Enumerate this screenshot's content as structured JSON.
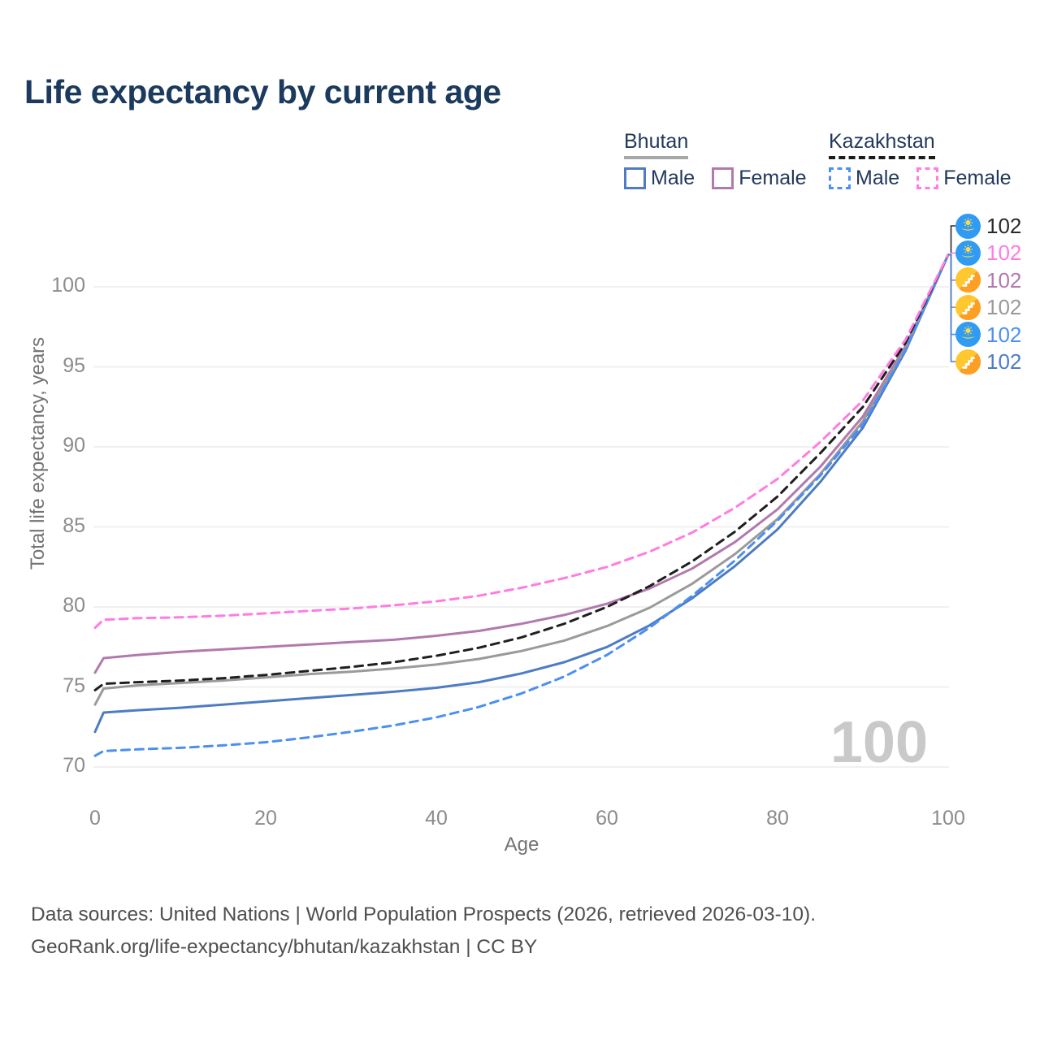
{
  "title": "Life expectancy by current age",
  "legend": {
    "groups": [
      {
        "label": "Bhutan",
        "underline_color": "#a8a8a8",
        "underline_style": "solid",
        "items": [
          {
            "label": "Male",
            "color": "#4d7cc3",
            "dashed": false
          },
          {
            "label": "Female",
            "color": "#b279ae",
            "dashed": false
          }
        ]
      },
      {
        "label": "Kazakhstan",
        "underline_color": "#1b1b1b",
        "underline_style": "dashed",
        "items": [
          {
            "label": "Male",
            "color": "#4b8ff2",
            "dashed": true
          },
          {
            "label": "Female",
            "color": "#ff7ce2",
            "dashed": true
          }
        ]
      }
    ]
  },
  "chart_data": {
    "type": "line",
    "title": "Life expectancy by current age",
    "xlabel": "Age",
    "ylabel": "Total life expectancy, years",
    "xlim": [
      0,
      100
    ],
    "ylim": [
      69,
      102.5
    ],
    "xticks": [
      0,
      20,
      40,
      60,
      80,
      100
    ],
    "yticks": [
      70,
      75,
      80,
      85,
      90,
      95,
      100
    ],
    "grid": "horizontal",
    "legend_position": "top-right",
    "watermark": "100",
    "x": [
      0,
      1,
      5,
      10,
      15,
      20,
      25,
      30,
      35,
      40,
      45,
      50,
      55,
      60,
      65,
      70,
      75,
      80,
      85,
      90,
      95,
      100
    ],
    "series": [
      {
        "name": "Bhutan Male",
        "country": "Bhutan",
        "sex": "male",
        "color": "#4d7cc3",
        "dashed": false,
        "values": [
          72.2,
          73.4,
          73.55,
          73.7,
          73.9,
          74.1,
          74.3,
          74.5,
          74.7,
          74.95,
          75.3,
          75.85,
          76.55,
          77.5,
          78.85,
          80.55,
          82.55,
          84.85,
          87.8,
          91.2,
          96.0,
          102
        ]
      },
      {
        "name": "Bhutan Female",
        "country": "Bhutan",
        "sex": "female",
        "color": "#b279ae",
        "dashed": false,
        "values": [
          75.9,
          76.8,
          77.0,
          77.2,
          77.35,
          77.5,
          77.65,
          77.8,
          77.95,
          78.2,
          78.5,
          78.95,
          79.5,
          80.2,
          81.15,
          82.4,
          84.05,
          86.1,
          88.75,
          91.9,
          96.3,
          102
        ]
      },
      {
        "name": "Bhutan (both sexes)",
        "country": "Bhutan",
        "sex": "both",
        "color": "#9a9a9a",
        "dashed": false,
        "values": [
          73.9,
          74.9,
          75.1,
          75.25,
          75.4,
          75.6,
          75.8,
          75.95,
          76.15,
          76.4,
          76.75,
          77.25,
          77.9,
          78.8,
          79.95,
          81.45,
          83.3,
          85.5,
          88.3,
          91.6,
          96.15,
          102
        ]
      },
      {
        "name": "Kazakhstan Male",
        "country": "Kazakhstan",
        "sex": "male",
        "color": "#4b8ff2",
        "dashed": true,
        "values": [
          70.7,
          71.0,
          71.1,
          71.2,
          71.35,
          71.55,
          71.85,
          72.2,
          72.6,
          73.1,
          73.75,
          74.6,
          75.65,
          77.0,
          78.7,
          80.7,
          82.9,
          85.4,
          88.2,
          91.4,
          96.05,
          102
        ]
      },
      {
        "name": "Kazakhstan (both sexes)",
        "country": "Kazakhstan",
        "sex": "both",
        "color": "#1f1f1f",
        "dashed": true,
        "values": [
          74.8,
          75.2,
          75.3,
          75.4,
          75.55,
          75.75,
          76.0,
          76.25,
          76.55,
          76.95,
          77.45,
          78.1,
          78.95,
          80.0,
          81.3,
          82.85,
          84.7,
          86.9,
          89.6,
          92.5,
          96.5,
          102
        ]
      },
      {
        "name": "Kazakhstan Female",
        "country": "Kazakhstan",
        "sex": "female",
        "color": "#ff7ce2",
        "dashed": true,
        "values": [
          78.7,
          79.2,
          79.3,
          79.35,
          79.45,
          79.6,
          79.75,
          79.9,
          80.1,
          80.35,
          80.7,
          81.2,
          81.8,
          82.5,
          83.45,
          84.65,
          86.2,
          88.0,
          90.3,
          92.9,
          96.7,
          102
        ]
      }
    ]
  },
  "badges": [
    {
      "flag": "kazakhstan",
      "value": "102",
      "color": "#2a2a2a",
      "series": "Kazakhstan (both sexes)"
    },
    {
      "flag": "kazakhstan",
      "value": "102",
      "color": "#ff7ce2",
      "series": "Kazakhstan Female"
    },
    {
      "flag": "bhutan",
      "value": "102",
      "color": "#b279ae",
      "series": "Bhutan Female"
    },
    {
      "flag": "bhutan",
      "value": "102",
      "color": "#9a9a9a",
      "series": "Bhutan (both sexes)"
    },
    {
      "flag": "kazakhstan",
      "value": "102",
      "color": "#4b8ff2",
      "series": "Kazakhstan Male"
    },
    {
      "flag": "bhutan",
      "value": "102",
      "color": "#4d7cc3",
      "series": "Bhutan Male"
    }
  ],
  "footer": {
    "line1": "Data sources: United Nations | World Population Prospects (2026, retrieved 2026-03-10).",
    "line2": "GeoRank.org/life-expectancy/bhutan/kazakhstan | CC BY"
  }
}
